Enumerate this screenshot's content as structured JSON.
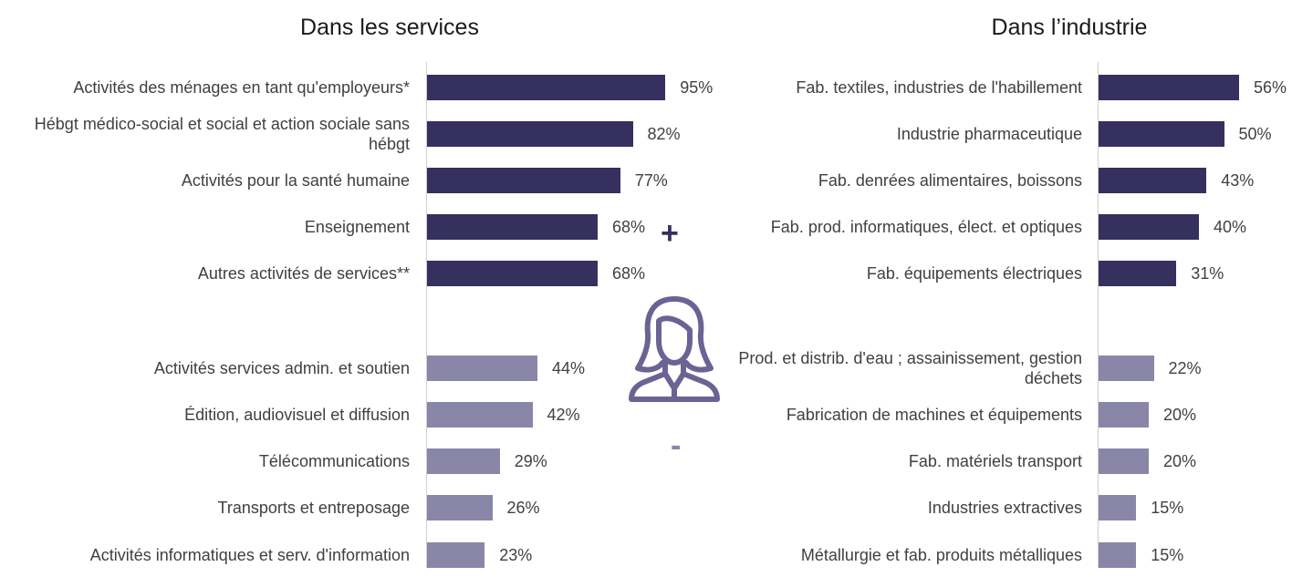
{
  "colors": {
    "high": "#36305e",
    "low": "#8a86a8",
    "icon": "#6a6494"
  },
  "symbols": {
    "plus": "+",
    "minus": "-"
  },
  "icon": "woman-icon",
  "chart_data": [
    {
      "type": "bar",
      "orientation": "horizontal",
      "title": "Dans les services",
      "xlim": [
        0,
        100
      ],
      "grid": false,
      "groups": [
        {
          "categories": [
            "Activités des ménages en tant qu'employeurs*",
            "Hébgt médico-social et social et action sociale sans hébgt",
            "Activités pour la santé humaine",
            "Enseignement",
            "Autres activités de services**"
          ],
          "values": [
            95,
            82,
            77,
            68,
            68
          ],
          "labels": [
            "95%",
            "82%",
            "77%",
            "68%",
            "68%"
          ]
        },
        {
          "categories": [
            "Activités services admin. et soutien",
            "Édition, audiovisuel et diffusion",
            "Télécommunications",
            "Transports et entreposage",
            "Activités informatiques et serv. d'information"
          ],
          "values": [
            44,
            42,
            29,
            26,
            23
          ],
          "labels": [
            "44%",
            "42%",
            "29%",
            "26%",
            "23%"
          ]
        }
      ]
    },
    {
      "type": "bar",
      "orientation": "horizontal",
      "title": "Dans l’industrie",
      "xlim": [
        0,
        100
      ],
      "grid": false,
      "groups": [
        {
          "categories": [
            "Fab. textiles, industries de l'habillement",
            "Industrie pharmaceutique",
            "Fab. denrées alimentaires, boissons",
            "Fab. prod. informatiques, élect. et optiques",
            "Fab. équipements électriques"
          ],
          "values": [
            56,
            50,
            43,
            40,
            31
          ],
          "labels": [
            "56%",
            "50%",
            "43%",
            "40%",
            "31%"
          ]
        },
        {
          "categories": [
            "Prod. et distrib. d'eau ; assainissement, gestion déchets",
            "Fabrication de machines et équipements",
            "Fab. matériels transport",
            "Industries extractives",
            "Métallurgie et fab. produits métalliques"
          ],
          "values": [
            22,
            20,
            20,
            15,
            15
          ],
          "labels": [
            "22%",
            "20%",
            "20%",
            "15%",
            "15%"
          ]
        }
      ]
    }
  ]
}
